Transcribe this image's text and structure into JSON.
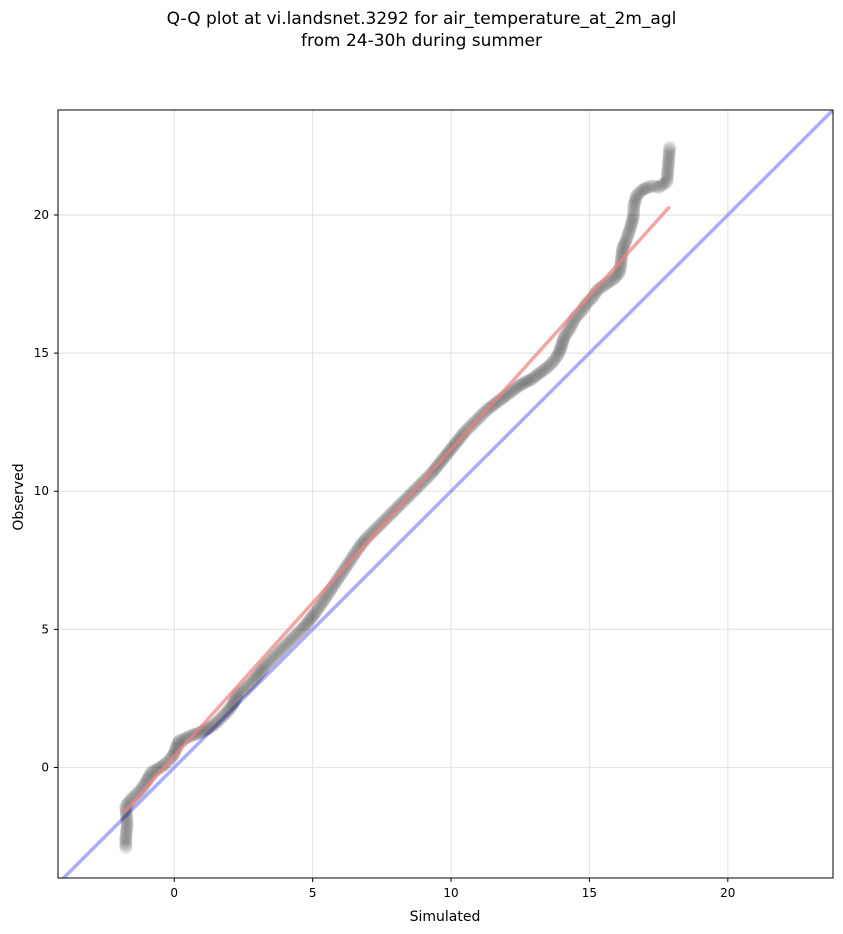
{
  "chart_data": {
    "type": "scatter",
    "title": "Q-Q plot at vi.landsnet.3292 for air_temperature_at_2m_agl",
    "subtitle": "from 24-30h during summer",
    "xlabel": "Simulated",
    "ylabel": "Observed",
    "xlim": [
      -4.2,
      23.8
    ],
    "ylim": [
      -4.0,
      23.8
    ],
    "x_ticks": [
      0,
      5,
      10,
      15,
      20
    ],
    "y_ticks": [
      0,
      5,
      10,
      15,
      20
    ],
    "x_tick_labels": [
      "0",
      "5",
      "10",
      "15",
      "20"
    ],
    "y_tick_labels": [
      "0",
      "5",
      "10",
      "15",
      "20"
    ],
    "grid": true,
    "point_color": "#000000",
    "points": [
      [
        -1.75,
        -2.9
      ],
      [
        -1.75,
        -2.55
      ],
      [
        -1.7,
        -2.1
      ],
      [
        -1.75,
        -1.4
      ],
      [
        -1.6,
        -1.2
      ],
      [
        -1.4,
        -1.0
      ],
      [
        -1.2,
        -0.8
      ],
      [
        -1.0,
        -0.5
      ],
      [
        -0.9,
        -0.3
      ],
      [
        -0.8,
        -0.15
      ],
      [
        -0.5,
        0.0
      ],
      [
        -0.3,
        0.15
      ],
      [
        -0.15,
        0.3
      ],
      [
        0.0,
        0.5
      ],
      [
        0.1,
        0.8
      ],
      [
        0.2,
        1.0
      ],
      [
        0.3,
        1.0
      ],
      [
        0.6,
        1.15
      ],
      [
        0.9,
        1.25
      ],
      [
        1.1,
        1.35
      ],
      [
        1.3,
        1.45
      ],
      [
        1.5,
        1.6
      ],
      [
        1.7,
        1.8
      ],
      [
        1.9,
        2.0
      ],
      [
        2.1,
        2.25
      ],
      [
        2.2,
        2.45
      ],
      [
        2.3,
        2.65
      ],
      [
        2.5,
        2.8
      ],
      [
        2.7,
        3.0
      ],
      [
        2.9,
        3.2
      ],
      [
        3.1,
        3.45
      ],
      [
        3.3,
        3.7
      ],
      [
        3.5,
        3.9
      ],
      [
        3.7,
        4.1
      ],
      [
        3.9,
        4.3
      ],
      [
        4.1,
        4.5
      ],
      [
        4.3,
        4.7
      ],
      [
        4.5,
        4.9
      ],
      [
        4.7,
        5.1
      ],
      [
        4.9,
        5.35
      ],
      [
        5.1,
        5.6
      ],
      [
        5.3,
        5.9
      ],
      [
        5.5,
        6.2
      ],
      [
        5.7,
        6.5
      ],
      [
        5.9,
        6.8
      ],
      [
        6.1,
        7.1
      ],
      [
        6.3,
        7.4
      ],
      [
        6.5,
        7.7
      ],
      [
        6.7,
        8.0
      ],
      [
        6.9,
        8.25
      ],
      [
        7.1,
        8.45
      ],
      [
        7.3,
        8.65
      ],
      [
        7.5,
        8.85
      ],
      [
        7.7,
        9.05
      ],
      [
        7.9,
        9.25
      ],
      [
        8.1,
        9.45
      ],
      [
        8.3,
        9.65
      ],
      [
        8.5,
        9.85
      ],
      [
        8.7,
        10.05
      ],
      [
        8.9,
        10.25
      ],
      [
        9.1,
        10.45
      ],
      [
        9.3,
        10.65
      ],
      [
        9.5,
        10.9
      ],
      [
        9.7,
        11.15
      ],
      [
        9.9,
        11.4
      ],
      [
        10.1,
        11.65
      ],
      [
        10.3,
        11.9
      ],
      [
        10.5,
        12.15
      ],
      [
        10.7,
        12.35
      ],
      [
        10.9,
        12.55
      ],
      [
        11.1,
        12.75
      ],
      [
        11.3,
        12.95
      ],
      [
        11.5,
        13.1
      ],
      [
        11.7,
        13.25
      ],
      [
        11.9,
        13.4
      ],
      [
        12.1,
        13.55
      ],
      [
        12.3,
        13.7
      ],
      [
        12.5,
        13.85
      ],
      [
        12.7,
        13.95
      ],
      [
        12.9,
        14.05
      ],
      [
        13.1,
        14.2
      ],
      [
        13.3,
        14.35
      ],
      [
        13.5,
        14.5
      ],
      [
        13.7,
        14.7
      ],
      [
        13.9,
        15.0
      ],
      [
        14.0,
        15.3
      ],
      [
        14.1,
        15.6
      ],
      [
        14.3,
        15.9
      ],
      [
        14.5,
        16.3
      ],
      [
        14.7,
        16.5
      ],
      [
        14.9,
        16.8
      ],
      [
        15.1,
        17.0
      ],
      [
        15.3,
        17.3
      ],
      [
        15.6,
        17.5
      ],
      [
        15.9,
        17.7
      ],
      [
        16.1,
        17.95
      ],
      [
        16.2,
        18.8
      ],
      [
        16.3,
        19.0
      ],
      [
        16.5,
        19.6
      ],
      [
        16.6,
        20.0
      ],
      [
        16.6,
        20.3
      ],
      [
        16.7,
        20.7
      ],
      [
        16.9,
        20.9
      ],
      [
        17.1,
        21.0
      ],
      [
        17.3,
        21.05
      ],
      [
        17.5,
        21.0
      ],
      [
        17.8,
        21.2
      ],
      [
        17.9,
        22.45
      ]
    ],
    "fit_line": {
      "color": "#f08080",
      "x": [
        -1.8,
        17.9
      ],
      "y": [
        -1.6,
        20.3
      ]
    },
    "identity_line": {
      "color": "#8080ff",
      "x": [
        -4.2,
        23.8
      ],
      "y": [
        -4.2,
        23.8
      ]
    }
  }
}
